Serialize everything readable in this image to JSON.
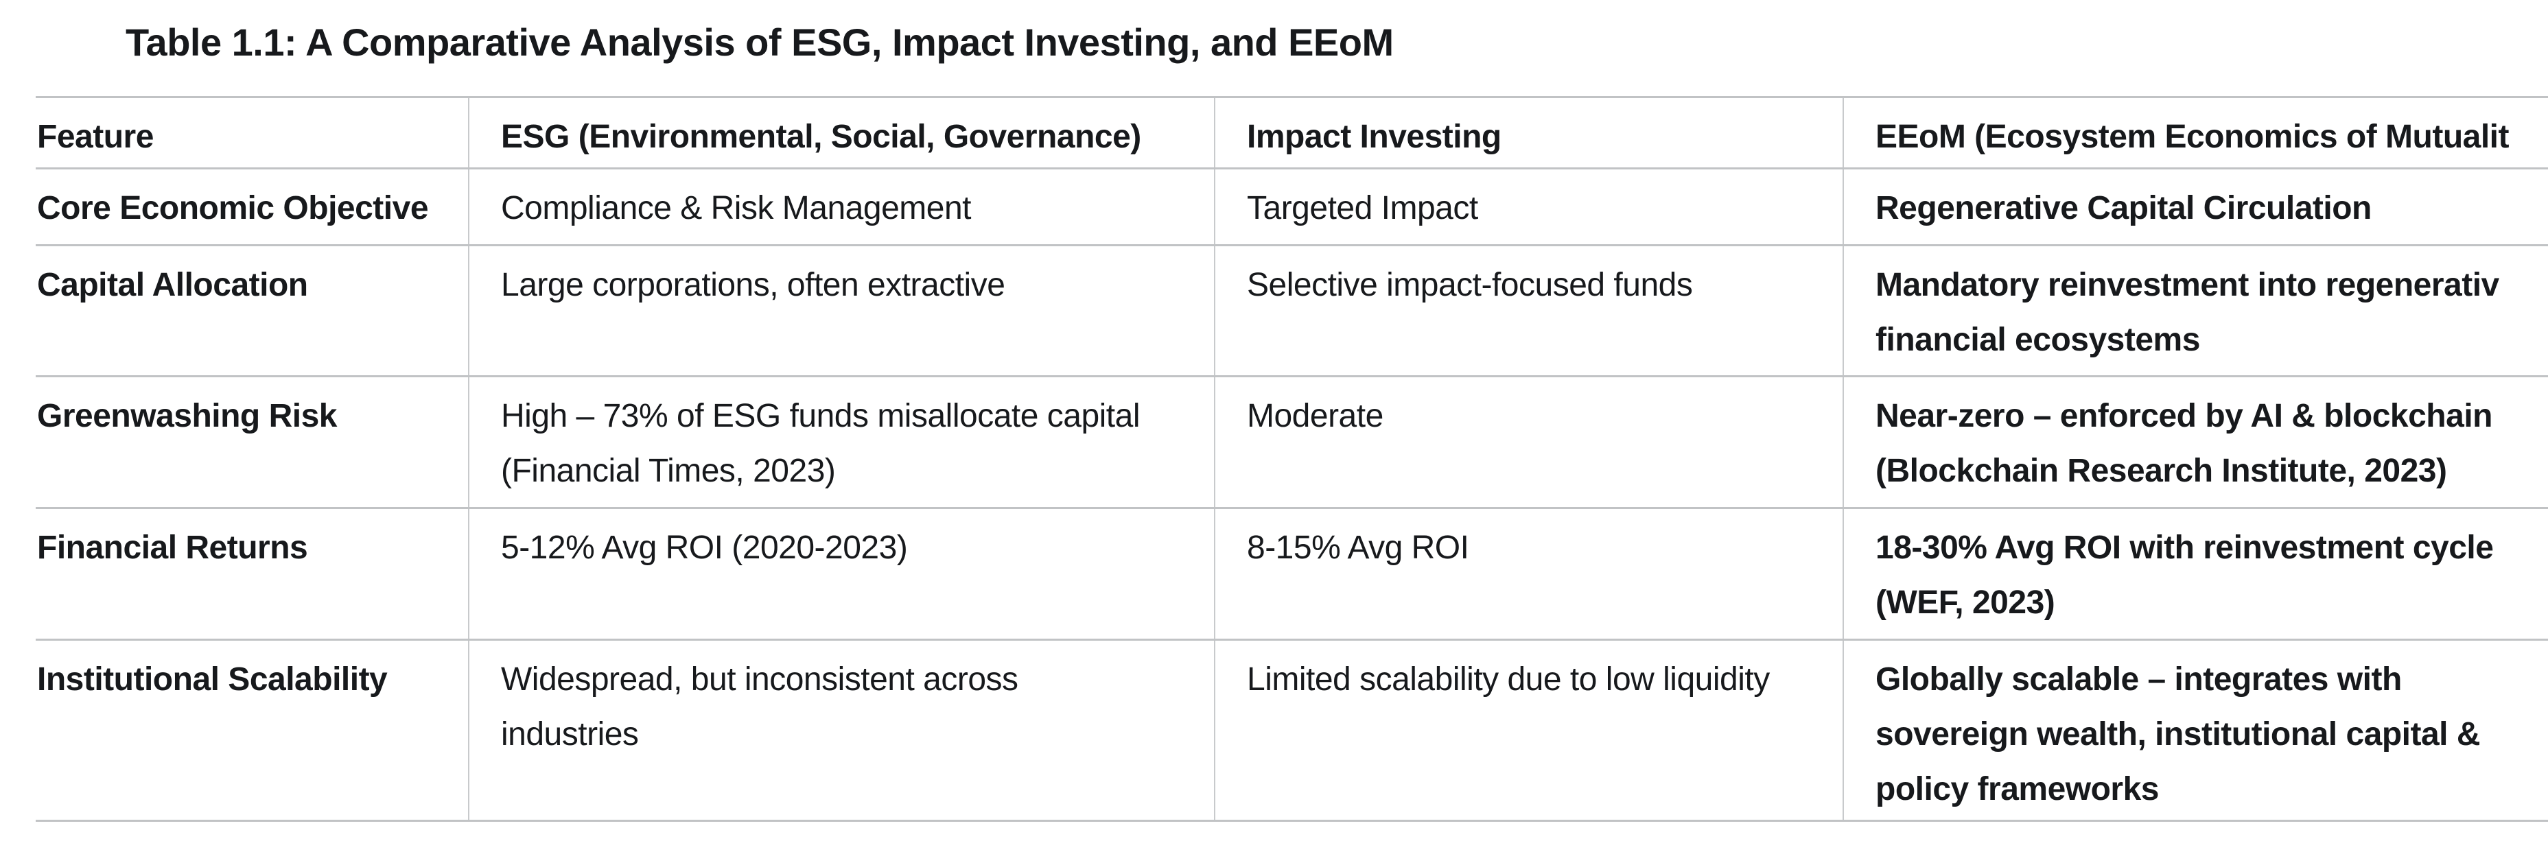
{
  "title": "Table 1.1: A Comparative Analysis of ESG, Impact Investing, and EEoM",
  "colors": {
    "text": "#17191c",
    "border_horizontal": "#c1c3c5",
    "border_vertical": "#c8cacc",
    "background": "#ffffff"
  },
  "table": {
    "headers": {
      "feature": "Feature",
      "esg": "ESG (Environmental, Social, Governance)",
      "impact": "Impact Investing",
      "eeom": "EEoM (Ecosystem Economics of Mutualit"
    },
    "rows": [
      {
        "feature": "Core Economic Objective",
        "esg": "Compliance & Risk Management",
        "impact": "Targeted Impact",
        "eeom": "Regenerative Capital Circulation"
      },
      {
        "feature": "Capital Allocation",
        "esg": "Large corporations, often extractive",
        "impact": "Selective impact-focused funds",
        "eeom": "Mandatory reinvestment into regenerativ\nfinancial ecosystems"
      },
      {
        "feature": "Greenwashing Risk",
        "esg": "High – 73% of ESG funds misallocate capital\n(Financial Times, 2023)",
        "impact": "Moderate",
        "eeom": "Near-zero – enforced by AI & blockchain\n(Blockchain Research Institute, 2023)"
      },
      {
        "feature": "Financial Returns",
        "esg": "5-12% Avg ROI (2020-2023)",
        "impact": "8-15% Avg ROI",
        "eeom": "18-30% Avg ROI with reinvestment cycle\n(WEF, 2023)"
      },
      {
        "feature": "Institutional Scalability",
        "esg": "Widespread, but inconsistent across\nindustries",
        "impact": "Limited scalability due to low liquidity",
        "eeom": "Globally scalable – integrates with\nsovereign wealth, institutional capital &\npolicy frameworks"
      }
    ]
  }
}
